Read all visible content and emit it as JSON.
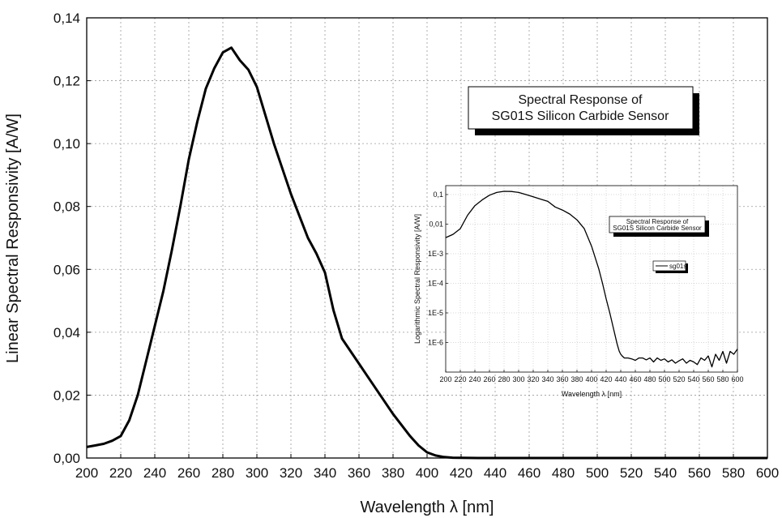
{
  "chart_data": [
    {
      "type": "line",
      "title": [
        "Spectral Response of",
        "SG01S Silicon Carbide Sensor"
      ],
      "xlabel": "Wavelength λ [nm]",
      "ylabel": "Linear Spectral Responsivity  [A/W]",
      "xlim": [
        200,
        600
      ],
      "ylim": [
        0,
        0.14
      ],
      "grid": true,
      "line_color": "#000000",
      "xticks": [
        200,
        220,
        240,
        260,
        280,
        300,
        320,
        340,
        360,
        380,
        400,
        420,
        440,
        460,
        480,
        500,
        520,
        540,
        560,
        580,
        600
      ],
      "xtick_labels": [
        "200",
        "220",
        "240",
        "260",
        "280",
        "300",
        "320",
        "340",
        "360",
        "380",
        "400",
        "420",
        "440",
        "460",
        "480",
        "500",
        "520",
        "540",
        "560",
        "580",
        "600"
      ],
      "yticks": [
        0,
        0.02,
        0.04,
        0.06,
        0.08,
        0.1,
        0.12,
        0.14
      ],
      "ytick_labels": [
        "0,00",
        "0,02",
        "0,04",
        "0,06",
        "0,08",
        "0,10",
        "0,12",
        "0,14"
      ],
      "x": [
        200,
        205,
        210,
        215,
        220,
        225,
        230,
        235,
        240,
        245,
        250,
        255,
        260,
        265,
        270,
        275,
        280,
        285,
        290,
        295,
        300,
        305,
        310,
        315,
        320,
        325,
        330,
        335,
        340,
        345,
        350,
        355,
        360,
        365,
        370,
        375,
        380,
        385,
        390,
        395,
        400,
        405,
        410,
        415,
        420,
        425,
        430,
        440,
        460,
        480,
        500,
        520,
        540,
        560,
        580,
        600
      ],
      "y": [
        0.0035,
        0.004,
        0.0045,
        0.0055,
        0.007,
        0.012,
        0.02,
        0.031,
        0.042,
        0.053,
        0.066,
        0.08,
        0.095,
        0.107,
        0.1175,
        0.124,
        0.129,
        0.1305,
        0.1265,
        0.1235,
        0.118,
        0.109,
        0.1,
        0.092,
        0.084,
        0.077,
        0.07,
        0.065,
        0.059,
        0.047,
        0.038,
        0.034,
        0.03,
        0.026,
        0.022,
        0.018,
        0.014,
        0.0105,
        0.007,
        0.004,
        0.0018,
        0.0008,
        0.0003,
        0.0001,
        5e-05,
        2e-05,
        1e-05,
        0,
        0,
        0,
        0,
        0,
        0,
        0,
        0,
        0
      ]
    },
    {
      "type": "line",
      "title": [
        "Spectral Response of",
        "SG01S Silicon Carbide Sensor"
      ],
      "xlabel": "Wavelength λ [nm]",
      "ylabel": "Logarithmic Spectral Responsivity [A/W]",
      "xlim": [
        200,
        600
      ],
      "ylim": [
        1e-07,
        0.2
      ],
      "yscale": "log",
      "grid": true,
      "legend": [
        "sg01s"
      ],
      "legend_position": "right",
      "xticks": [
        200,
        220,
        240,
        260,
        280,
        300,
        320,
        340,
        360,
        380,
        400,
        420,
        440,
        460,
        480,
        500,
        520,
        540,
        560,
        580,
        600
      ],
      "xtick_labels": [
        "200",
        "220",
        "240",
        "260",
        "280",
        "300",
        "320",
        "340",
        "360",
        "380",
        "400",
        "420",
        "440",
        "460",
        "480",
        "500",
        "520",
        "540",
        "560",
        "580",
        "600"
      ],
      "yticks": [
        0.1,
        0.01,
        0.001,
        0.0001,
        1e-05,
        1e-06
      ],
      "ytick_labels": [
        "0,1",
        "0,01",
        "1E-3",
        "1E-4",
        "1E-5",
        "1E-6"
      ],
      "x": [
        200,
        210,
        220,
        230,
        240,
        250,
        260,
        270,
        280,
        290,
        300,
        310,
        320,
        330,
        340,
        350,
        360,
        370,
        380,
        390,
        400,
        410,
        415,
        420,
        425,
        430,
        435,
        438,
        440,
        442,
        445,
        450,
        455,
        460,
        465,
        470,
        475,
        480,
        485,
        490,
        495,
        500,
        505,
        510,
        515,
        520,
        525,
        530,
        535,
        540,
        545,
        550,
        555,
        560,
        565,
        570,
        575,
        580,
        585,
        590,
        595,
        600
      ],
      "y": [
        0.0035,
        0.0045,
        0.007,
        0.02,
        0.042,
        0.066,
        0.095,
        0.1175,
        0.129,
        0.127,
        0.118,
        0.1,
        0.084,
        0.07,
        0.059,
        0.038,
        0.03,
        0.022,
        0.014,
        0.007,
        0.0018,
        0.0003,
        0.0001,
        3e-05,
        1e-05,
        3e-06,
        9e-07,
        5e-07,
        4e-07,
        3.5e-07,
        3e-07,
        3e-07,
        2.8e-07,
        2.5e-07,
        3e-07,
        3e-07,
        2.6e-07,
        3e-07,
        2.2e-07,
        3e-07,
        2.5e-07,
        2.8e-07,
        2.2e-07,
        2.6e-07,
        2e-07,
        2.4e-07,
        2.8e-07,
        2e-07,
        2.5e-07,
        2.2e-07,
        1.8e-07,
        3e-07,
        2.5e-07,
        3.5e-07,
        1.5e-07,
        4e-07,
        2.5e-07,
        5e-07,
        2e-07,
        5e-07,
        4e-07,
        6e-07
      ]
    }
  ]
}
